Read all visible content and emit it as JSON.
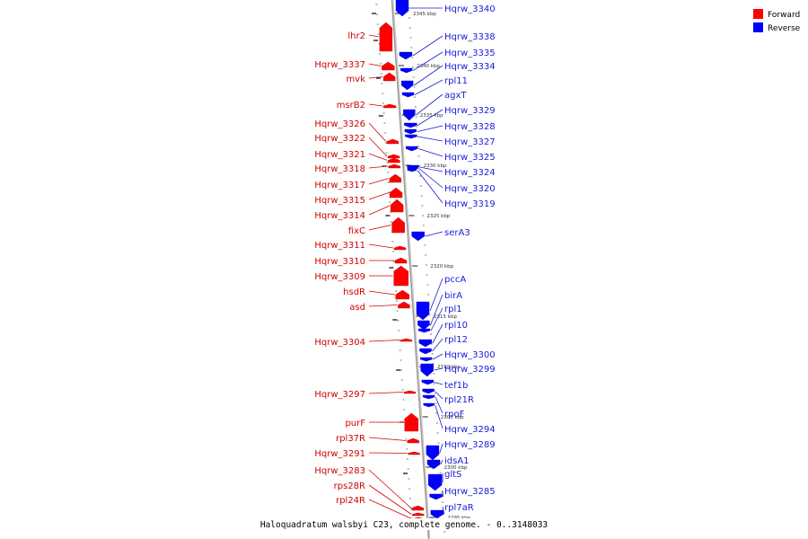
{
  "caption": "Haloquadratum walsbyi C23, complete genome. - 0..3148033",
  "legend": [
    {
      "label": "Forward",
      "color": "#ff0000"
    },
    {
      "label": "Reverse",
      "color": "#0000ff"
    }
  ],
  "colors": {
    "forward": "#ff0000",
    "reverse": "#0000ff",
    "forward_text": "#d10000",
    "reverse_text": "#1a1ad6",
    "backbone": "#999999"
  },
  "axis": {
    "unit": "kbp",
    "direction": "descending downward"
  },
  "scale_ticks": [
    {
      "label": "2345 kbp",
      "kbp": 2345
    },
    {
      "label": "2340 kbp",
      "kbp": 2340
    },
    {
      "label": "2335 kbp",
      "kbp": 2335
    },
    {
      "label": "2330 kbp",
      "kbp": 2330
    },
    {
      "label": "2325 kbp",
      "kbp": 2325
    },
    {
      "label": "2320 kbp",
      "kbp": 2320
    },
    {
      "label": "2315 kbp",
      "kbp": 2315
    },
    {
      "label": "2310 kbp",
      "kbp": 2310
    },
    {
      "label": "2305 kbp",
      "kbp": 2305
    },
    {
      "label": "2300 kbp",
      "kbp": 2300
    },
    {
      "label": "2295 kbp",
      "kbp": 2295
    }
  ],
  "forward_genes": [
    "lhr2",
    "Hqrw_3337",
    "mvk",
    "msrB2",
    "Hqrw_3326",
    "Hqrw_3322",
    "Hqrw_3321",
    "Hqrw_3318",
    "Hqrw_3317",
    "Hqrw_3315",
    "Hqrw_3314",
    "fixC",
    "Hqrw_3311",
    "Hqrw_3310",
    "Hqrw_3309",
    "hsdR",
    "asd",
    "Hqrw_3304",
    "Hqrw_3297",
    "purF",
    "rpl37R",
    "Hqrw_3291",
    "Hqrw_3283",
    "rps28R",
    "rpl24R"
  ],
  "reverse_genes": [
    "Hqrw_3340",
    "Hqrw_3338",
    "Hqrw_3335",
    "Hqrw_3334",
    "rpl11",
    "agxT",
    "Hqrw_3329",
    "Hqrw_3328",
    "Hqrw_3327",
    "Hqrw_3325",
    "Hqrw_3324",
    "Hqrw_3320",
    "Hqrw_3319",
    "serA3",
    "pccA",
    "birA",
    "rpl1",
    "rpl10",
    "rpl12",
    "Hqrw_3300",
    "Hqrw_3299",
    "tef1b",
    "rpl21R",
    "rpoF",
    "Hqrw_3294",
    "Hqrw_3289",
    "idsA1",
    "gltS",
    "Hqrw_3285",
    "rpl7aR"
  ]
}
